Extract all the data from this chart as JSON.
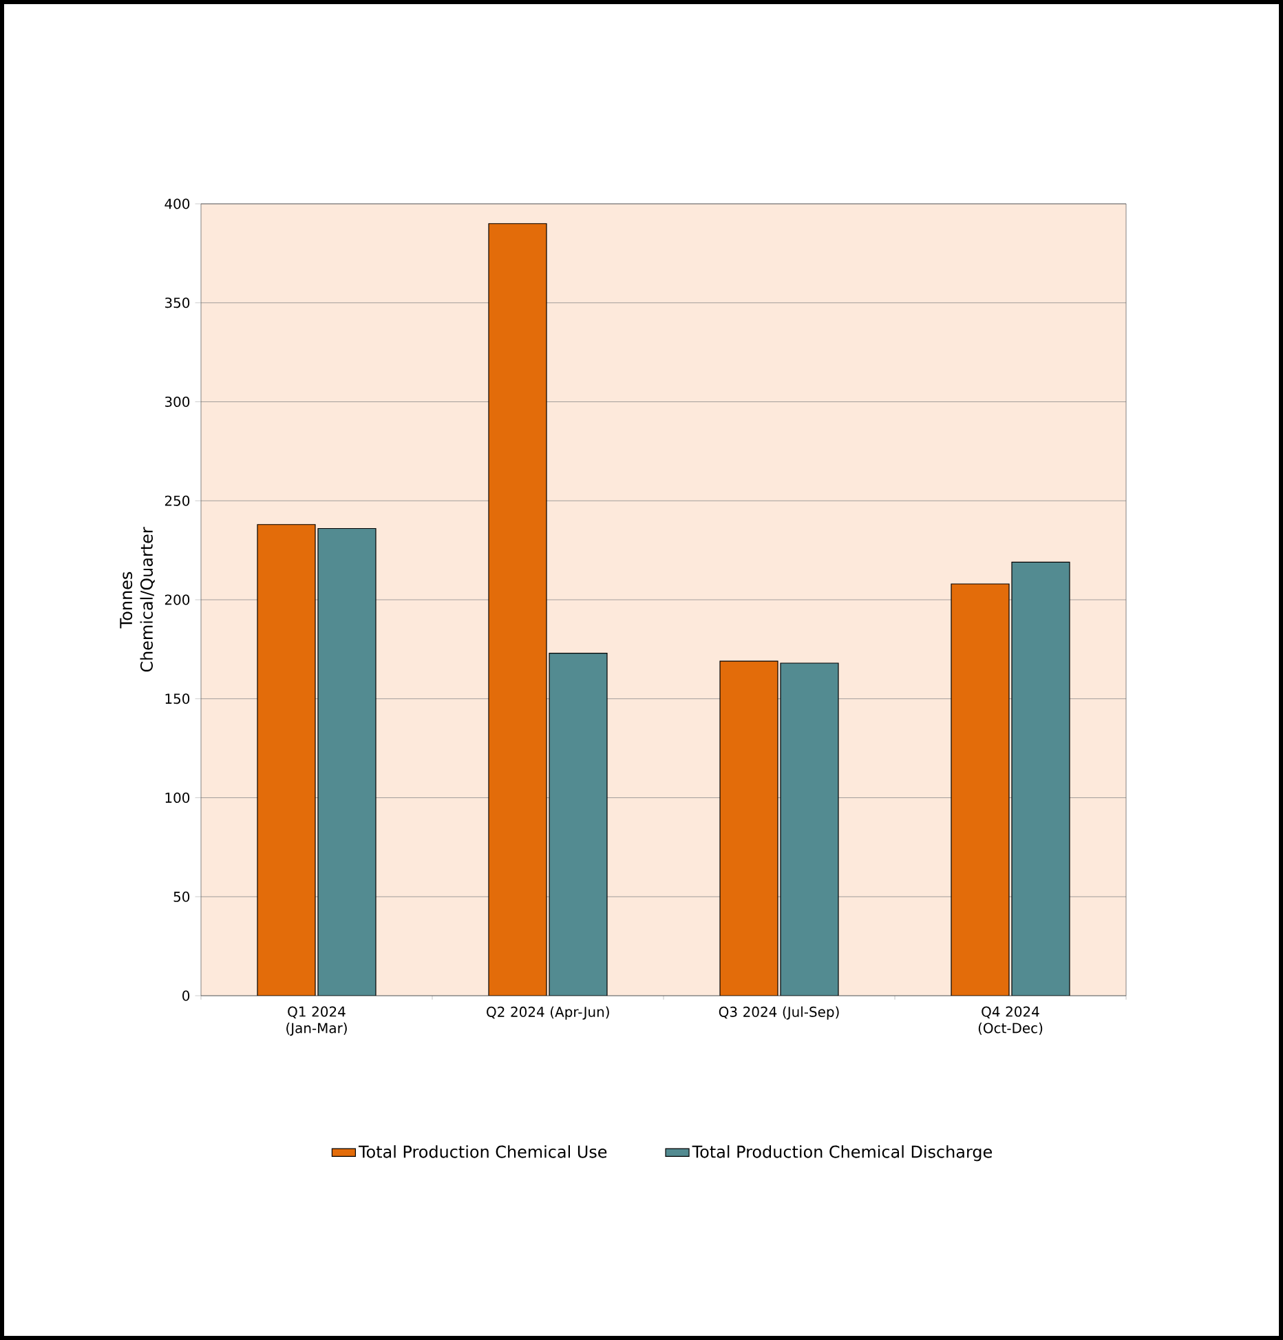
{
  "chart_data": {
    "type": "bar",
    "ylabel": "Tonnes Chemical/Quarter",
    "categories": [
      "Q1 2024 (Jan-Mar)",
      "Q2 2024 (Apr-Jun)",
      "Q3 2024 (Jul-Sep)",
      "Q4 2024 (Oct-Dec)"
    ],
    "series": [
      {
        "name": "Total Production Chemical Use",
        "color": "#e36c0a",
        "values": [
          238,
          390,
          169,
          208
        ]
      },
      {
        "name": "Total Production Chemical Discharge",
        "color": "#538b91",
        "values": [
          236,
          173,
          168,
          219
        ]
      }
    ],
    "ylim": [
      0,
      400
    ],
    "yticks": [
      0,
      50,
      100,
      150,
      200,
      250,
      300,
      350,
      400
    ],
    "grid": "y",
    "legend": "bottom"
  }
}
